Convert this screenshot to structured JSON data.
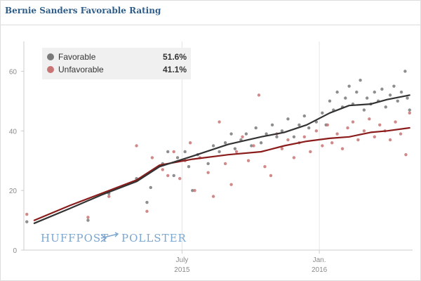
{
  "chart_data": {
    "type": "scatter",
    "title": "Bernie Sanders Favorable Rating",
    "ylim": [
      0,
      70
    ],
    "y_ticks": [
      0,
      20,
      40,
      60
    ],
    "x_ticks": [
      {
        "date": "2015-07-01",
        "month": "July",
        "year": "2015"
      },
      {
        "date": "2016-01-01",
        "month": "Jan.",
        "year": "2016"
      }
    ],
    "xlim": [
      "2014-12-01",
      "2016-05-05"
    ],
    "grid": "vertical",
    "legend_position": "top-left",
    "branding": {
      "left": "HUFFPOST",
      "right": "POLLSTER"
    },
    "series": [
      {
        "name": "Favorable",
        "current": "51.6%",
        "color": "#333333",
        "dot_color": "#7a7a7a",
        "trend": [
          [
            "2014-12-15",
            9
          ],
          [
            "2015-02-01",
            14
          ],
          [
            "2015-03-15",
            18.5
          ],
          [
            "2015-05-01",
            23
          ],
          [
            "2015-06-01",
            28
          ],
          [
            "2015-07-15",
            31.5
          ],
          [
            "2015-09-01",
            35.5
          ],
          [
            "2015-10-15",
            38
          ],
          [
            "2015-11-15",
            39.5
          ],
          [
            "2015-12-15",
            42
          ],
          [
            "2016-01-15",
            46
          ],
          [
            "2016-02-10",
            48.5
          ],
          [
            "2016-03-10",
            49
          ],
          [
            "2016-04-01",
            50.5
          ],
          [
            "2016-05-01",
            52
          ]
        ],
        "polls": [
          [
            "2014-12-05",
            9.5
          ],
          [
            "2015-02-25",
            10
          ],
          [
            "2015-03-25",
            19
          ],
          [
            "2015-05-01",
            24
          ],
          [
            "2015-05-15",
            16
          ],
          [
            "2015-05-20",
            21
          ],
          [
            "2015-06-05",
            29
          ],
          [
            "2015-06-12",
            33
          ],
          [
            "2015-06-20",
            25
          ],
          [
            "2015-06-25",
            31
          ],
          [
            "2015-07-05",
            33
          ],
          [
            "2015-07-10",
            28
          ],
          [
            "2015-07-15",
            20
          ],
          [
            "2015-07-22",
            32
          ],
          [
            "2015-08-05",
            29
          ],
          [
            "2015-08-12",
            35
          ],
          [
            "2015-08-20",
            33
          ],
          [
            "2015-08-28",
            36
          ],
          [
            "2015-09-05",
            39
          ],
          [
            "2015-09-10",
            34
          ],
          [
            "2015-09-18",
            37
          ],
          [
            "2015-09-25",
            39
          ],
          [
            "2015-10-02",
            35
          ],
          [
            "2015-10-08",
            41
          ],
          [
            "2015-10-15",
            36
          ],
          [
            "2015-10-22",
            39
          ],
          [
            "2015-10-30",
            42
          ],
          [
            "2015-11-05",
            38
          ],
          [
            "2015-11-12",
            40
          ],
          [
            "2015-11-20",
            44
          ],
          [
            "2015-11-28",
            38
          ],
          [
            "2015-12-05",
            42
          ],
          [
            "2015-12-12",
            45
          ],
          [
            "2015-12-18",
            41
          ],
          [
            "2015-12-28",
            43
          ],
          [
            "2016-01-05",
            46
          ],
          [
            "2016-01-10",
            42
          ],
          [
            "2016-01-15",
            50
          ],
          [
            "2016-01-20",
            47
          ],
          [
            "2016-01-25",
            53
          ],
          [
            "2016-02-01",
            48
          ],
          [
            "2016-02-05",
            51
          ],
          [
            "2016-02-10",
            55
          ],
          [
            "2016-02-15",
            49
          ],
          [
            "2016-02-20",
            53
          ],
          [
            "2016-02-25",
            57
          ],
          [
            "2016-03-01",
            47
          ],
          [
            "2016-03-05",
            51
          ],
          [
            "2016-03-10",
            49
          ],
          [
            "2016-03-15",
            53
          ],
          [
            "2016-03-20",
            50
          ],
          [
            "2016-03-25",
            54
          ],
          [
            "2016-03-30",
            48
          ],
          [
            "2016-04-05",
            52
          ],
          [
            "2016-04-10",
            55
          ],
          [
            "2016-04-15",
            50
          ],
          [
            "2016-04-20",
            53
          ],
          [
            "2016-04-25",
            60
          ],
          [
            "2016-04-28",
            51
          ],
          [
            "2016-05-01",
            47
          ]
        ]
      },
      {
        "name": "Unfavorable",
        "current": "41.1%",
        "color": "#8b1c1c",
        "dot_color": "#c97474",
        "trend": [
          [
            "2014-12-15",
            10
          ],
          [
            "2015-02-01",
            15
          ],
          [
            "2015-03-15",
            19
          ],
          [
            "2015-05-01",
            23.5
          ],
          [
            "2015-06-01",
            28.5
          ],
          [
            "2015-07-15",
            30.5
          ],
          [
            "2015-09-01",
            32
          ],
          [
            "2015-10-15",
            33
          ],
          [
            "2015-11-15",
            35
          ],
          [
            "2015-12-15",
            36.5
          ],
          [
            "2016-01-15",
            37.5
          ],
          [
            "2016-02-10",
            38
          ],
          [
            "2016-03-10",
            39.5
          ],
          [
            "2016-04-01",
            40
          ],
          [
            "2016-05-01",
            41
          ]
        ],
        "polls": [
          [
            "2014-12-05",
            12
          ],
          [
            "2015-02-25",
            11
          ],
          [
            "2015-03-25",
            18
          ],
          [
            "2015-05-01",
            35
          ],
          [
            "2015-05-15",
            13
          ],
          [
            "2015-05-22",
            31
          ],
          [
            "2015-06-05",
            27
          ],
          [
            "2015-06-12",
            25
          ],
          [
            "2015-06-20",
            33
          ],
          [
            "2015-06-28",
            24
          ],
          [
            "2015-07-05",
            30
          ],
          [
            "2015-07-12",
            36
          ],
          [
            "2015-07-18",
            20
          ],
          [
            "2015-07-25",
            31
          ],
          [
            "2015-08-05",
            26
          ],
          [
            "2015-08-12",
            18
          ],
          [
            "2015-08-20",
            43
          ],
          [
            "2015-08-28",
            29
          ],
          [
            "2015-09-05",
            22
          ],
          [
            "2015-09-12",
            33
          ],
          [
            "2015-09-20",
            38
          ],
          [
            "2015-09-28",
            30
          ],
          [
            "2015-10-05",
            35
          ],
          [
            "2015-10-12",
            52
          ],
          [
            "2015-10-20",
            28
          ],
          [
            "2015-10-28",
            25
          ],
          [
            "2015-11-05",
            39
          ],
          [
            "2015-11-12",
            34
          ],
          [
            "2015-11-20",
            37
          ],
          [
            "2015-11-28",
            31
          ],
          [
            "2015-12-05",
            36
          ],
          [
            "2015-12-12",
            38
          ],
          [
            "2015-12-20",
            33
          ],
          [
            "2015-12-28",
            40
          ],
          [
            "2016-01-05",
            35
          ],
          [
            "2016-01-12",
            42
          ],
          [
            "2016-01-18",
            36
          ],
          [
            "2016-01-25",
            39
          ],
          [
            "2016-02-01",
            34
          ],
          [
            "2016-02-08",
            41
          ],
          [
            "2016-02-15",
            43
          ],
          [
            "2016-02-22",
            37
          ],
          [
            "2016-03-01",
            40
          ],
          [
            "2016-03-08",
            44
          ],
          [
            "2016-03-15",
            38
          ],
          [
            "2016-03-22",
            42
          ],
          [
            "2016-03-29",
            40
          ],
          [
            "2016-04-05",
            37
          ],
          [
            "2016-04-12",
            43
          ],
          [
            "2016-04-19",
            39
          ],
          [
            "2016-04-26",
            32
          ],
          [
            "2016-05-01",
            46
          ]
        ]
      }
    ]
  }
}
